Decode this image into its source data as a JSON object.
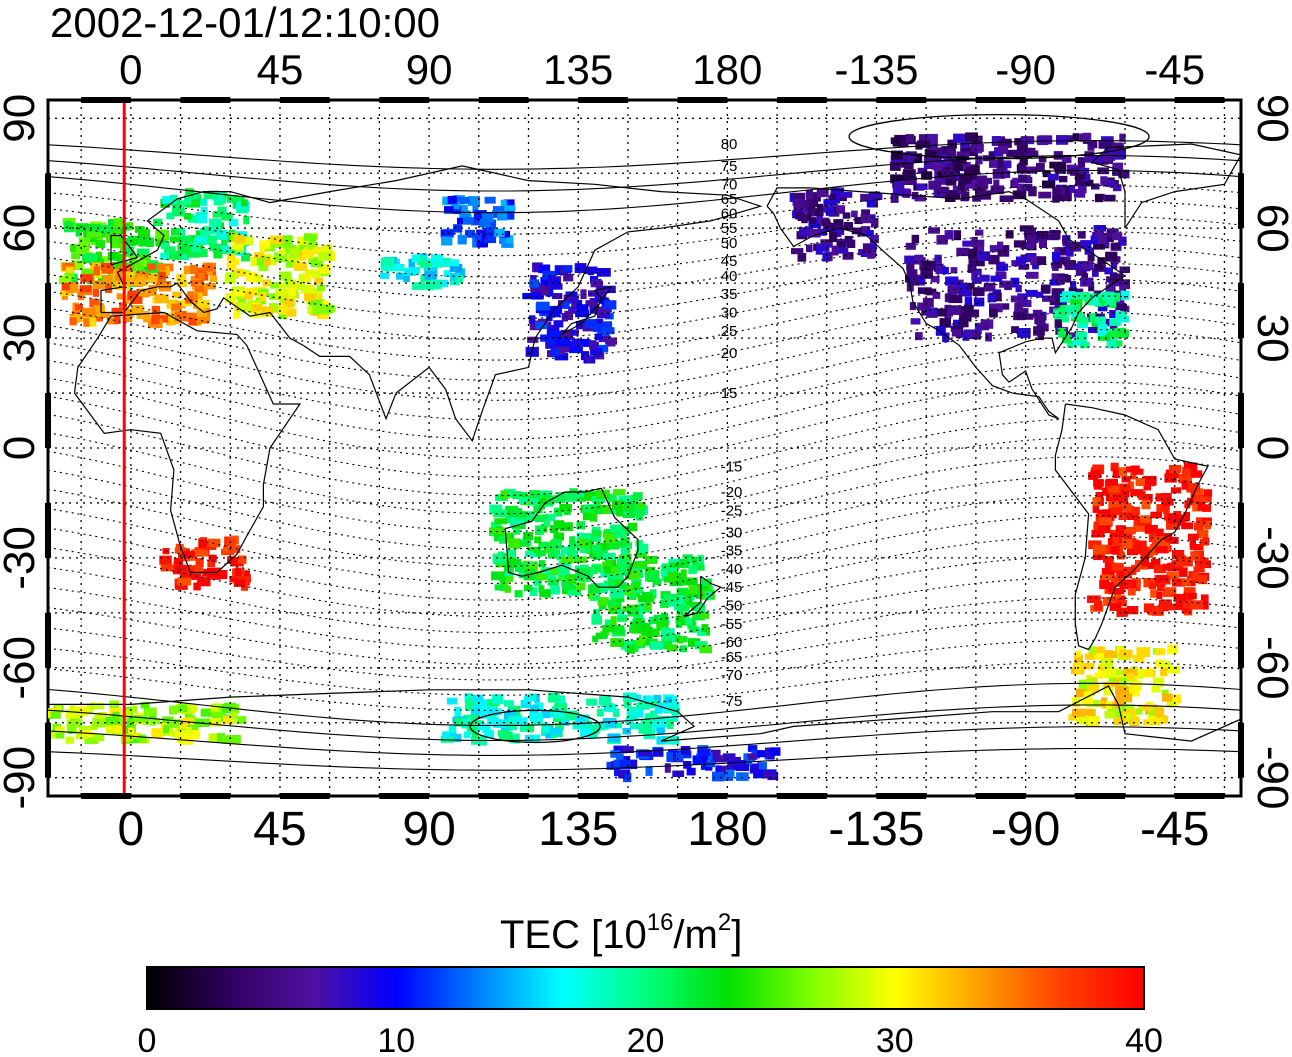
{
  "title": "2002-12-01/12:10:00",
  "map": {
    "lon_range": [
      -25,
      335
    ],
    "lat_range": [
      -95,
      95
    ],
    "lon_ticks": [
      0,
      45,
      90,
      135,
      180,
      225,
      270,
      315
    ],
    "lon_tick_labels": [
      "0",
      "45",
      "90",
      "135",
      "180",
      "-135",
      "-90",
      "-45"
    ],
    "lat_ticks": [
      90,
      60,
      30,
      0,
      -30,
      -60,
      -90
    ],
    "lat_tick_labels": [
      "90",
      "60",
      "30",
      "0",
      "-30",
      "-60",
      "-90"
    ],
    "grid": true,
    "marker_line_lon": -2,
    "marker_line_color": "#ff0000",
    "contour_labels": [
      "80",
      "75",
      "70",
      "65",
      "60",
      "55",
      "50",
      "45",
      "40",
      "35",
      "30",
      "25",
      "20",
      "15",
      "-15",
      "-20",
      "-25",
      "-30",
      "-35",
      "-40",
      "-45",
      "-50",
      "-55",
      "-60",
      "-65",
      "-70",
      "-75"
    ],
    "contour_label_lats": [
      83,
      77,
      72,
      68,
      64,
      60,
      56,
      51,
      47,
      42,
      37,
      32,
      26,
      15,
      -5,
      -12,
      -17,
      -23,
      -28,
      -33,
      -38,
      -43,
      -48,
      -53,
      -57,
      -62,
      -69
    ]
  },
  "colorbar": {
    "label_main": "TEC  [10",
    "label_exp": "16",
    "label_unit": "/m",
    "label_exp2": "2",
    "label_end": "]",
    "min": 0,
    "max": 40,
    "ticks": [
      "0",
      "10",
      "20",
      "30",
      "40"
    ],
    "stops": [
      "#000000",
      "#300060",
      "#5010a0",
      "#0000ff",
      "#0080ff",
      "#00ffff",
      "#00ff80",
      "#00e000",
      "#80ff00",
      "#ffff00",
      "#ffa000",
      "#ff4000",
      "#ff0000"
    ]
  },
  "chart_data": {
    "type": "heatmap",
    "title": "2002-12-01/12:10:00",
    "value_label": "TEC [10^16/m^2]",
    "value_range": [
      0,
      40
    ],
    "regions": [
      {
        "lon": [
          -20,
          10
        ],
        "lat": [
          44,
          62
        ],
        "tec": 24
      },
      {
        "lon": [
          -20,
          25
        ],
        "lat": [
          34,
          50
        ],
        "tec": 34
      },
      {
        "lon": [
          10,
          35
        ],
        "lat": [
          52,
          70
        ],
        "tec": 20
      },
      {
        "lon": [
          30,
          60
        ],
        "lat": [
          36,
          58
        ],
        "tec": 29
      },
      {
        "lon": [
          75,
          100
        ],
        "lat": [
          44,
          52
        ],
        "tec": 17
      },
      {
        "lon": [
          95,
          115
        ],
        "lat": [
          55,
          68
        ],
        "tec": 12
      },
      {
        "lon": [
          120,
          145
        ],
        "lat": [
          24,
          50
        ],
        "tec": 9
      },
      {
        "lon": [
          200,
          225
        ],
        "lat": [
          52,
          70
        ],
        "tec": 6
      },
      {
        "lon": [
          235,
          300
        ],
        "lat": [
          30,
          60
        ],
        "tec": 6
      },
      {
        "lon": [
          280,
          300
        ],
        "lat": [
          28,
          42
        ],
        "tec": 20
      },
      {
        "lon": [
          230,
          300
        ],
        "lat": [
          68,
          85
        ],
        "tec": 5
      },
      {
        "lon": [
          290,
          325
        ],
        "lat": [
          -45,
          -5
        ],
        "tec": 39
      },
      {
        "lon": [
          285,
          315
        ],
        "lat": [
          -75,
          -55
        ],
        "tec": 30
      },
      {
        "lon": [
          10,
          35
        ],
        "lat": [
          -38,
          -25
        ],
        "tec": 39
      },
      {
        "lon": [
          140,
          175
        ],
        "lat": [
          -55,
          -30
        ],
        "tec": 22
      },
      {
        "lon": [
          110,
          155
        ],
        "lat": [
          -40,
          -12
        ],
        "tec": 22
      },
      {
        "lon": [
          -25,
          35
        ],
        "lat": [
          -80,
          -70
        ],
        "tec": 28
      },
      {
        "lon": [
          95,
          165
        ],
        "lat": [
          -80,
          -68
        ],
        "tec": 18
      },
      {
        "lon": [
          145,
          195
        ],
        "lat": [
          -90,
          -82
        ],
        "tec": 10
      }
    ]
  }
}
